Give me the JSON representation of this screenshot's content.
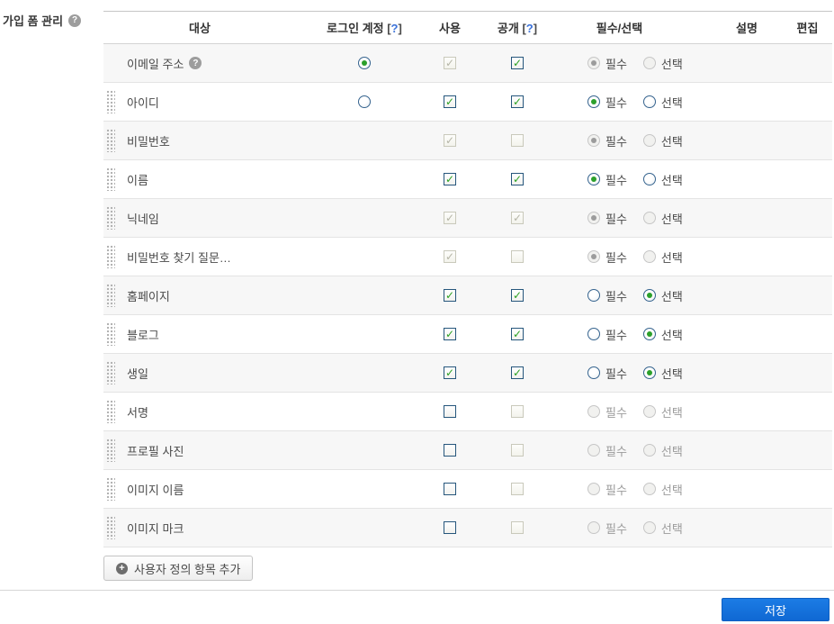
{
  "title": {
    "text": "가입 폼 관리",
    "help_icon": "?"
  },
  "header": {
    "target": "대상",
    "login_account": "로그인 계정",
    "use": "사용",
    "public": "공개",
    "required_optional": "필수/선택",
    "description": "설명",
    "edit": "편집",
    "help_link": {
      "open": "[",
      "mark": "?",
      "close": "]"
    }
  },
  "radio_labels": {
    "required": "필수",
    "optional": "선택"
  },
  "rows": [
    {
      "label": "이메일 주소",
      "help": "?",
      "drag": false,
      "login": "selected",
      "use": {
        "checked": true,
        "disabled": true
      },
      "public": {
        "checked": true,
        "disabled": false
      },
      "req": {
        "selected": "required",
        "disabled": true
      }
    },
    {
      "label": "아이디",
      "drag": true,
      "login": "unselected",
      "use": {
        "checked": true,
        "disabled": false
      },
      "public": {
        "checked": true,
        "disabled": false
      },
      "req": {
        "selected": "required",
        "disabled": false
      }
    },
    {
      "label": "비밀번호",
      "drag": true,
      "login": "none",
      "use": {
        "checked": true,
        "disabled": true
      },
      "public": {
        "checked": false,
        "disabled": true
      },
      "req": {
        "selected": "required",
        "disabled": true
      }
    },
    {
      "label": "이름",
      "drag": true,
      "login": "none",
      "use": {
        "checked": true,
        "disabled": false
      },
      "public": {
        "checked": true,
        "disabled": false
      },
      "req": {
        "selected": "required",
        "disabled": false
      }
    },
    {
      "label": "닉네임",
      "drag": true,
      "login": "none",
      "use": {
        "checked": true,
        "disabled": true
      },
      "public": {
        "checked": true,
        "disabled": true
      },
      "req": {
        "selected": "required",
        "disabled": true
      }
    },
    {
      "label": "비밀번호 찾기 질문…",
      "drag": true,
      "login": "none",
      "use": {
        "checked": true,
        "disabled": true
      },
      "public": {
        "checked": false,
        "disabled": true
      },
      "req": {
        "selected": "required",
        "disabled": true
      }
    },
    {
      "label": "홈페이지",
      "drag": true,
      "login": "none",
      "use": {
        "checked": true,
        "disabled": false
      },
      "public": {
        "checked": true,
        "disabled": false
      },
      "req": {
        "selected": "optional",
        "disabled": false
      }
    },
    {
      "label": "블로그",
      "drag": true,
      "login": "none",
      "use": {
        "checked": true,
        "disabled": false
      },
      "public": {
        "checked": true,
        "disabled": false
      },
      "req": {
        "selected": "optional",
        "disabled": false
      }
    },
    {
      "label": "생일",
      "drag": true,
      "login": "none",
      "use": {
        "checked": true,
        "disabled": false
      },
      "public": {
        "checked": true,
        "disabled": false
      },
      "req": {
        "selected": "optional",
        "disabled": false
      }
    },
    {
      "label": "서명",
      "drag": true,
      "login": "none",
      "use": {
        "checked": false,
        "disabled": false
      },
      "public": {
        "checked": false,
        "disabled": true
      },
      "req": {
        "selected": null,
        "disabled": true
      }
    },
    {
      "label": "프로필 사진",
      "drag": true,
      "login": "none",
      "use": {
        "checked": false,
        "disabled": false
      },
      "public": {
        "checked": false,
        "disabled": true
      },
      "req": {
        "selected": null,
        "disabled": true
      }
    },
    {
      "label": "이미지 이름",
      "drag": true,
      "login": "none",
      "use": {
        "checked": false,
        "disabled": false
      },
      "public": {
        "checked": false,
        "disabled": true
      },
      "req": {
        "selected": null,
        "disabled": true
      }
    },
    {
      "label": "이미지 마크",
      "drag": true,
      "login": "none",
      "use": {
        "checked": false,
        "disabled": false
      },
      "public": {
        "checked": false,
        "disabled": true
      },
      "req": {
        "selected": null,
        "disabled": true
      }
    }
  ],
  "buttons": {
    "add_custom_field": "사용자 정의 항목 추가",
    "add_icon": "+",
    "save": "저장"
  },
  "colors": {
    "accent_blue": "#1271dd",
    "check_green": "#2ba021",
    "link_blue": "#3b72d9",
    "stripe_gray": "#f7f7f7"
  }
}
